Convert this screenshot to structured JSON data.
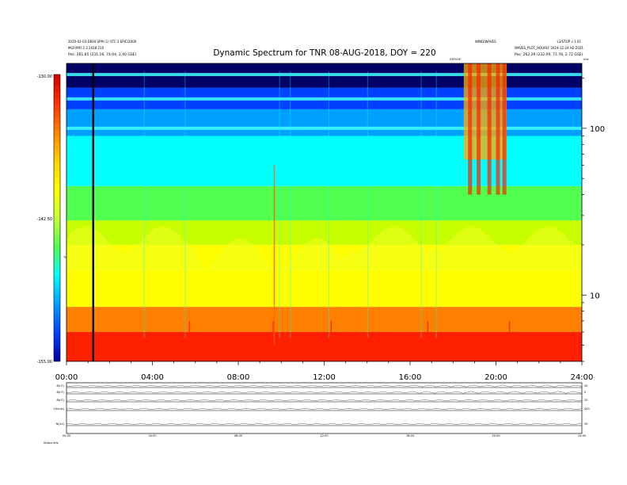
{
  "header": {
    "title": "Dynamic Spectrum for TNR 08-AUG-2018, DOY = 220",
    "left_lines": [
      "2020-01-03 DE04 SPM (1) STC 3 EPIC/2000",
      "MGF/MFI 2 3 2018 210",
      "Pos:   261.65 (231.16, 74.04, 2.40 GSE)"
    ],
    "right_top_left": "WIND/WAVES",
    "right_top_right": "L3/STOP v 1.01",
    "right_mid": "WAVES_PLOT_HOURLY 2019-12-24 H2:2021",
    "right_pos": "Pos:   262.29 (232.09, 71.78, 2.72 GSE)",
    "marker_label": "DEFUSE",
    "corner_label": "kHz"
  },
  "colorbar": {
    "label": "TNR",
    "ticks": [
      "-130.00",
      "-142.50",
      "-155.00"
    ],
    "colors": [
      "#d40000",
      "#ff3000",
      "#ff8000",
      "#ffd000",
      "#ffff00",
      "#c8ff30",
      "#50ff50",
      "#00ffff",
      "#00a0ff",
      "#0040ff",
      "#0000a0"
    ]
  },
  "chart_data": {
    "type": "heatmap",
    "title": "Dynamic Spectrum for TNR 08-AUG-2018, DOY = 220",
    "x_unit": "hours UT",
    "x_range": [
      0,
      24
    ],
    "x_ticks": [
      "00:00",
      "04:00",
      "08:00",
      "12:00",
      "16:00",
      "20:00",
      "24:00"
    ],
    "y_scale": "log",
    "y_unit": "kHz",
    "y_range": [
      4,
      245
    ],
    "y_ticks": [
      10,
      100
    ],
    "y_tick_labels": [
      "10",
      "100"
    ],
    "z_range": [
      -155.0,
      -130.0
    ],
    "z_ticks": [
      -130.0,
      -142.5,
      -155.0
    ],
    "marker_time_hours": 1.2,
    "intense_burst_hours": [
      18.5,
      20.5
    ],
    "layers": [
      {
        "from": 4.0,
        "to": 6.0,
        "color": "#ff2000"
      },
      {
        "from": 6.0,
        "to": 8.5,
        "color": "#ff8000"
      },
      {
        "from": 8.5,
        "to": 20.0,
        "color": "#ffff00"
      },
      {
        "from": 20.0,
        "to": 28.0,
        "color": "#c8ff00"
      },
      {
        "from": 28.0,
        "to": 45.0,
        "color": "#50ff50"
      },
      {
        "from": 45.0,
        "to": 90.0,
        "color": "#00ffff"
      },
      {
        "from": 90.0,
        "to": 130.0,
        "color": "#00a0ff"
      },
      {
        "from": 130.0,
        "to": 175.0,
        "color": "#0040ff"
      },
      {
        "from": 175.0,
        "to": 245.0,
        "color": "#000066"
      }
    ]
  },
  "lower_panels": {
    "x_ticks": [
      "00:00",
      "04:00",
      "08:00",
      "12:00",
      "16:00",
      "20:00",
      "24:00"
    ],
    "left_labels": [
      "B(nT)",
      "B(nT)",
      "B(nT)",
      "V(km/s)",
      "N(/cc)"
    ],
    "right_labels": [
      "20",
      "0",
      "20",
      "400",
      "50"
    ],
    "footer": "Status  kHz"
  }
}
